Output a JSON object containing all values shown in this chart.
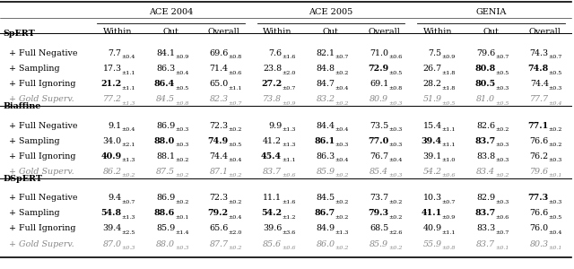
{
  "col_groups": [
    "ACE 2004",
    "ACE 2005",
    "GENIA"
  ],
  "col_headers": [
    "Within",
    "Out",
    "Overall",
    "Within",
    "Out",
    "Overall",
    "Within",
    "Out",
    "Overall"
  ],
  "row_groups": [
    {
      "name": "SpERT",
      "rows": [
        {
          "label": "+ Full Negative",
          "values": [
            "7.7",
            "84.1",
            "69.6",
            "7.6",
            "82.1",
            "71.0",
            "7.5",
            "79.6",
            "74.3"
          ],
          "subs": [
            "±0.4",
            "±0.9",
            "±0.8",
            "±1.6",
            "±0.7",
            "±0.6",
            "±0.9",
            "±0.7",
            "±0.7"
          ],
          "bold_cols": []
        },
        {
          "label": "+ Sampling",
          "values": [
            "17.3",
            "86.3",
            "71.4",
            "23.8",
            "84.8",
            "72.9",
            "26.7",
            "80.8",
            "74.8"
          ],
          "subs": [
            "±1.1",
            "±0.4",
            "±0.6",
            "±2.0",
            "±0.2",
            "±0.5",
            "±1.8",
            "±0.5",
            "±0.5"
          ],
          "bold_cols": [
            5,
            7,
            8
          ]
        },
        {
          "label": "+ Full Ignoring",
          "values": [
            "21.2",
            "86.4",
            "65.0",
            "27.2",
            "84.7",
            "69.1",
            "28.2",
            "80.5",
            "74.4"
          ],
          "subs": [
            "±1.1",
            "±0.5",
            "±1.1",
            "±0.7",
            "±0.4",
            "±0.8",
            "±1.8",
            "±0.3",
            "±0.3"
          ],
          "bold_cols": [
            0,
            1,
            3,
            7
          ]
        },
        {
          "label": "+ Gold Superv.",
          "italic": true,
          "values": [
            "77.2",
            "84.5",
            "82.3",
            "73.8",
            "83.2",
            "80.9",
            "51.9",
            "81.0",
            "77.7"
          ],
          "subs": [
            "±1.3",
            "±0.8",
            "±0.7",
            "±0.9",
            "±0.2",
            "±0.3",
            "±0.5",
            "±0.5",
            "±0.4"
          ],
          "bold_cols": []
        }
      ]
    },
    {
      "name": "Biaffine",
      "rows": [
        {
          "label": "+ Full Negative",
          "values": [
            "9.1",
            "86.9",
            "72.3",
            "9.9",
            "84.4",
            "73.5",
            "15.4",
            "82.6",
            "77.1"
          ],
          "subs": [
            "±0.4",
            "±0.3",
            "±0.2",
            "±1.3",
            "±0.4",
            "±0.3",
            "±1.1",
            "±0.2",
            "±0.2"
          ],
          "bold_cols": [
            8
          ]
        },
        {
          "label": "+ Sampling",
          "values": [
            "34.0",
            "88.0",
            "74.9",
            "41.2",
            "86.1",
            "77.0",
            "39.4",
            "83.7",
            "76.6"
          ],
          "subs": [
            "±2.1",
            "±0.3",
            "±0.5",
            "±1.3",
            "±0.3",
            "±0.3",
            "±1.1",
            "±0.3",
            "±0.2"
          ],
          "bold_cols": [
            1,
            2,
            4,
            5,
            6,
            7
          ]
        },
        {
          "label": "+ Full Ignoring",
          "values": [
            "40.9",
            "88.1",
            "74.4",
            "45.4",
            "86.3",
            "76.7",
            "39.1",
            "83.8",
            "76.2"
          ],
          "subs": [
            "±1.3",
            "±0.2",
            "±0.4",
            "±1.1",
            "±0.4",
            "±0.4",
            "±1.0",
            "±0.3",
            "±0.3"
          ],
          "bold_cols": [
            0,
            3
          ]
        },
        {
          "label": "+ Gold Superv.",
          "italic": true,
          "values": [
            "86.2",
            "87.5",
            "87.1",
            "83.7",
            "85.9",
            "85.4",
            "54.2",
            "83.4",
            "79.6"
          ],
          "subs": [
            "±0.2",
            "±0.2",
            "±0.2",
            "±0.6",
            "±0.2",
            "±0.3",
            "±0.6",
            "±0.2",
            "±0.1"
          ],
          "bold_cols": []
        }
      ]
    },
    {
      "name": "DSpERT",
      "rows": [
        {
          "label": "+ Full Negative",
          "values": [
            "9.4",
            "86.9",
            "72.3",
            "11.1",
            "84.5",
            "73.7",
            "10.3",
            "82.9",
            "77.3"
          ],
          "subs": [
            "±0.7",
            "±0.2",
            "±0.2",
            "±1.6",
            "±0.2",
            "±0.2",
            "±0.7",
            "±0.3",
            "±0.3"
          ],
          "bold_cols": [
            8
          ]
        },
        {
          "label": "+ Sampling",
          "values": [
            "54.8",
            "88.6",
            "79.2",
            "54.2",
            "86.7",
            "79.3",
            "41.1",
            "83.7",
            "76.6"
          ],
          "subs": [
            "±1.3",
            "±0.1",
            "±0.4",
            "±1.2",
            "±0.2",
            "±0.2",
            "±0.9",
            "±0.6",
            "±0.5"
          ],
          "bold_cols": [
            0,
            1,
            2,
            3,
            4,
            5,
            6,
            7
          ]
        },
        {
          "label": "+ Full Ignoring",
          "values": [
            "39.4",
            "85.9",
            "65.6",
            "39.6",
            "84.9",
            "68.5",
            "40.9",
            "83.3",
            "76.0"
          ],
          "subs": [
            "±2.5",
            "±1.4",
            "±2.0",
            "±3.6",
            "±1.3",
            "±2.6",
            "±1.1",
            "±0.7",
            "±0.4"
          ],
          "bold_cols": []
        },
        {
          "label": "+ Gold Superv.",
          "italic": true,
          "values": [
            "87.0",
            "88.0",
            "87.7",
            "85.6",
            "86.0",
            "85.9",
            "55.9",
            "83.7",
            "80.3"
          ],
          "subs": [
            "±0.3",
            "±0.3",
            "±0.2",
            "±0.6",
            "±0.2",
            "±0.2",
            "±0.8",
            "±0.1",
            "±0.1"
          ],
          "bold_cols": []
        }
      ]
    }
  ]
}
